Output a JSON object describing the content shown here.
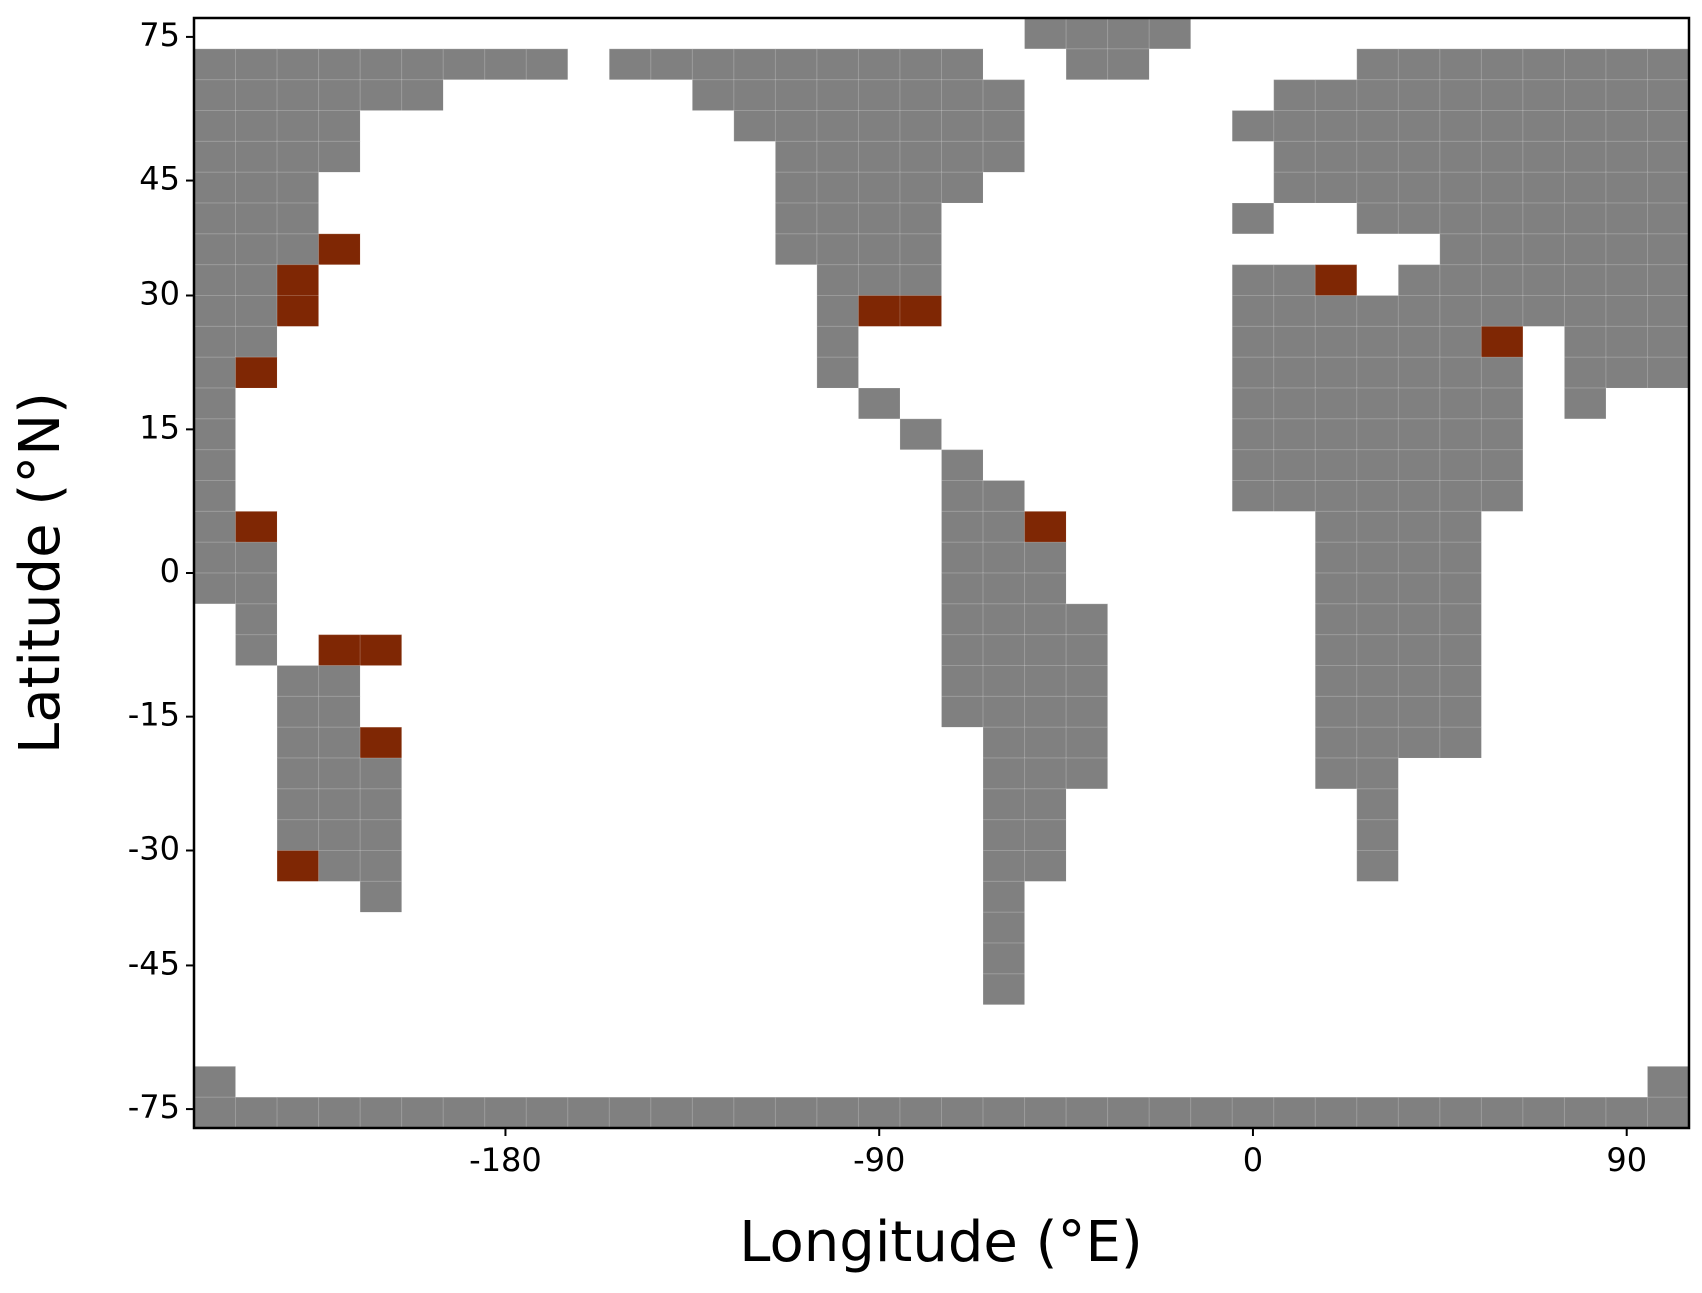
{
  "chart_data": {
    "type": "grid-map",
    "xlabel": "Longitude (°E)",
    "ylabel": "Latitude (°N)",
    "xlim": [
      -255,
      105
    ],
    "xticks": [
      -180,
      -90,
      0,
      90
    ],
    "ylim": [
      -90,
      90
    ],
    "yticks": [
      75,
      45,
      30,
      15,
      0,
      -15,
      -30,
      -45,
      -75
    ],
    "yscale": "sine",
    "colors": [
      "#ffffff",
      "#808080",
      "#7f2704"
    ],
    "values": [
      [
        0,
        0,
        0,
        0,
        0,
        0,
        0,
        0,
        0,
        0,
        0,
        0,
        0,
        0,
        0,
        0,
        0,
        0,
        0,
        0,
        1,
        1,
        1,
        1,
        0,
        0,
        0,
        0,
        0,
        0,
        0,
        0,
        0,
        0,
        0,
        0
      ],
      [
        1,
        1,
        1,
        1,
        1,
        1,
        1,
        1,
        1,
        0,
        1,
        1,
        1,
        1,
        1,
        1,
        1,
        1,
        1,
        0,
        0,
        1,
        1,
        0,
        0,
        0,
        0,
        0,
        1,
        1,
        1,
        1,
        1,
        1,
        1,
        1
      ],
      [
        1,
        1,
        1,
        1,
        1,
        1,
        0,
        0,
        0,
        0,
        0,
        0,
        1,
        1,
        1,
        1,
        1,
        1,
        1,
        1,
        0,
        0,
        0,
        0,
        0,
        0,
        1,
        1,
        1,
        1,
        1,
        1,
        1,
        1,
        1,
        1
      ],
      [
        1,
        1,
        1,
        1,
        0,
        0,
        0,
        0,
        0,
        0,
        0,
        0,
        0,
        1,
        1,
        1,
        1,
        1,
        1,
        1,
        0,
        0,
        0,
        0,
        0,
        1,
        1,
        1,
        1,
        1,
        1,
        1,
        1,
        1,
        1,
        1
      ],
      [
        1,
        1,
        1,
        1,
        0,
        0,
        0,
        0,
        0,
        0,
        0,
        0,
        0,
        0,
        1,
        1,
        1,
        1,
        1,
        1,
        0,
        0,
        0,
        0,
        0,
        0,
        1,
        1,
        1,
        1,
        1,
        1,
        1,
        1,
        1,
        1
      ],
      [
        1,
        1,
        1,
        0,
        0,
        0,
        0,
        0,
        0,
        0,
        0,
        0,
        0,
        0,
        1,
        1,
        1,
        1,
        1,
        0,
        0,
        0,
        0,
        0,
        0,
        0,
        1,
        1,
        1,
        1,
        1,
        1,
        1,
        1,
        1,
        1
      ],
      [
        1,
        1,
        1,
        0,
        0,
        0,
        0,
        0,
        0,
        0,
        0,
        0,
        0,
        0,
        1,
        1,
        1,
        1,
        0,
        0,
        0,
        0,
        0,
        0,
        0,
        1,
        0,
        0,
        1,
        1,
        1,
        1,
        1,
        1,
        1,
        1
      ],
      [
        1,
        1,
        1,
        2,
        0,
        0,
        0,
        0,
        0,
        0,
        0,
        0,
        0,
        0,
        1,
        1,
        1,
        1,
        0,
        0,
        0,
        0,
        0,
        0,
        0,
        0,
        0,
        0,
        0,
        0,
        1,
        1,
        1,
        1,
        1,
        1
      ],
      [
        1,
        1,
        2,
        0,
        0,
        0,
        0,
        0,
        0,
        0,
        0,
        0,
        0,
        0,
        0,
        1,
        1,
        1,
        0,
        0,
        0,
        0,
        0,
        0,
        0,
        1,
        1,
        2,
        0,
        1,
        1,
        1,
        1,
        1,
        1,
        1
      ],
      [
        1,
        1,
        2,
        0,
        0,
        0,
        0,
        0,
        0,
        0,
        0,
        0,
        0,
        0,
        0,
        1,
        2,
        2,
        0,
        0,
        0,
        0,
        0,
        0,
        0,
        1,
        1,
        1,
        1,
        1,
        1,
        1,
        1,
        1,
        1,
        1
      ],
      [
        1,
        1,
        0,
        0,
        0,
        0,
        0,
        0,
        0,
        0,
        0,
        0,
        0,
        0,
        0,
        1,
        0,
        0,
        0,
        0,
        0,
        0,
        0,
        0,
        0,
        1,
        1,
        1,
        1,
        1,
        1,
        2,
        0,
        1,
        1,
        1
      ],
      [
        1,
        2,
        0,
        0,
        0,
        0,
        0,
        0,
        0,
        0,
        0,
        0,
        0,
        0,
        0,
        1,
        0,
        0,
        0,
        0,
        0,
        0,
        0,
        0,
        0,
        1,
        1,
        1,
        1,
        1,
        1,
        1,
        0,
        1,
        1,
        1
      ],
      [
        1,
        0,
        0,
        0,
        0,
        0,
        0,
        0,
        0,
        0,
        0,
        0,
        0,
        0,
        0,
        0,
        1,
        0,
        0,
        0,
        0,
        0,
        0,
        0,
        0,
        1,
        1,
        1,
        1,
        1,
        1,
        1,
        0,
        1,
        0,
        0
      ],
      [
        1,
        0,
        0,
        0,
        0,
        0,
        0,
        0,
        0,
        0,
        0,
        0,
        0,
        0,
        0,
        0,
        0,
        1,
        0,
        0,
        0,
        0,
        0,
        0,
        0,
        1,
        1,
        1,
        1,
        1,
        1,
        1,
        0,
        0,
        0,
        0
      ],
      [
        1,
        0,
        0,
        0,
        0,
        0,
        0,
        0,
        0,
        0,
        0,
        0,
        0,
        0,
        0,
        0,
        0,
        0,
        1,
        0,
        0,
        0,
        0,
        0,
        0,
        1,
        1,
        1,
        1,
        1,
        1,
        1,
        0,
        0,
        0,
        0
      ],
      [
        1,
        0,
        0,
        0,
        0,
        0,
        0,
        0,
        0,
        0,
        0,
        0,
        0,
        0,
        0,
        0,
        0,
        0,
        1,
        1,
        0,
        0,
        0,
        0,
        0,
        1,
        1,
        1,
        1,
        1,
        1,
        1,
        0,
        0,
        0,
        0
      ],
      [
        1,
        2,
        0,
        0,
        0,
        0,
        0,
        0,
        0,
        0,
        0,
        0,
        0,
        0,
        0,
        0,
        0,
        0,
        1,
        1,
        2,
        0,
        0,
        0,
        0,
        0,
        0,
        1,
        1,
        1,
        1,
        0,
        0,
        0,
        0,
        0
      ],
      [
        1,
        1,
        0,
        0,
        0,
        0,
        0,
        0,
        0,
        0,
        0,
        0,
        0,
        0,
        0,
        0,
        0,
        0,
        1,
        1,
        1,
        0,
        0,
        0,
        0,
        0,
        0,
        1,
        1,
        1,
        1,
        0,
        0,
        0,
        0,
        0
      ],
      [
        1,
        1,
        0,
        0,
        0,
        0,
        0,
        0,
        0,
        0,
        0,
        0,
        0,
        0,
        0,
        0,
        0,
        0,
        1,
        1,
        1,
        0,
        0,
        0,
        0,
        0,
        0,
        1,
        1,
        1,
        1,
        0,
        0,
        0,
        0,
        0
      ],
      [
        0,
        1,
        0,
        0,
        0,
        0,
        0,
        0,
        0,
        0,
        0,
        0,
        0,
        0,
        0,
        0,
        0,
        0,
        1,
        1,
        1,
        1,
        0,
        0,
        0,
        0,
        0,
        1,
        1,
        1,
        1,
        0,
        0,
        0,
        0,
        0
      ],
      [
        0,
        1,
        0,
        2,
        2,
        0,
        0,
        0,
        0,
        0,
        0,
        0,
        0,
        0,
        0,
        0,
        0,
        0,
        1,
        1,
        1,
        1,
        0,
        0,
        0,
        0,
        0,
        1,
        1,
        1,
        1,
        0,
        0,
        0,
        0,
        0
      ],
      [
        0,
        0,
        1,
        1,
        0,
        0,
        0,
        0,
        0,
        0,
        0,
        0,
        0,
        0,
        0,
        0,
        0,
        0,
        1,
        1,
        1,
        1,
        0,
        0,
        0,
        0,
        0,
        1,
        1,
        1,
        1,
        0,
        0,
        0,
        0,
        0
      ],
      [
        0,
        0,
        1,
        1,
        0,
        0,
        0,
        0,
        0,
        0,
        0,
        0,
        0,
        0,
        0,
        0,
        0,
        0,
        1,
        1,
        1,
        1,
        0,
        0,
        0,
        0,
        0,
        1,
        1,
        1,
        1,
        0,
        0,
        0,
        0,
        0
      ],
      [
        0,
        0,
        1,
        1,
        2,
        0,
        0,
        0,
        0,
        0,
        0,
        0,
        0,
        0,
        0,
        0,
        0,
        0,
        0,
        1,
        1,
        1,
        0,
        0,
        0,
        0,
        0,
        1,
        1,
        1,
        1,
        0,
        0,
        0,
        0,
        0
      ],
      [
        0,
        0,
        1,
        1,
        1,
        0,
        0,
        0,
        0,
        0,
        0,
        0,
        0,
        0,
        0,
        0,
        0,
        0,
        0,
        1,
        1,
        1,
        0,
        0,
        0,
        0,
        0,
        1,
        1,
        0,
        0,
        0,
        0,
        0,
        0,
        0
      ],
      [
        0,
        0,
        1,
        1,
        1,
        0,
        0,
        0,
        0,
        0,
        0,
        0,
        0,
        0,
        0,
        0,
        0,
        0,
        0,
        1,
        1,
        0,
        0,
        0,
        0,
        0,
        0,
        0,
        1,
        0,
        0,
        0,
        0,
        0,
        0,
        0
      ],
      [
        0,
        0,
        1,
        1,
        1,
        0,
        0,
        0,
        0,
        0,
        0,
        0,
        0,
        0,
        0,
        0,
        0,
        0,
        0,
        1,
        1,
        0,
        0,
        0,
        0,
        0,
        0,
        0,
        1,
        0,
        0,
        0,
        0,
        0,
        0,
        0
      ],
      [
        0,
        0,
        2,
        1,
        1,
        0,
        0,
        0,
        0,
        0,
        0,
        0,
        0,
        0,
        0,
        0,
        0,
        0,
        0,
        1,
        1,
        0,
        0,
        0,
        0,
        0,
        0,
        0,
        1,
        0,
        0,
        0,
        0,
        0,
        0,
        0
      ],
      [
        0,
        0,
        0,
        0,
        1,
        0,
        0,
        0,
        0,
        0,
        0,
        0,
        0,
        0,
        0,
        0,
        0,
        0,
        0,
        1,
        0,
        0,
        0,
        0,
        0,
        0,
        0,
        0,
        0,
        0,
        0,
        0,
        0,
        0,
        0,
        0
      ],
      [
        0,
        0,
        0,
        0,
        0,
        0,
        0,
        0,
        0,
        0,
        0,
        0,
        0,
        0,
        0,
        0,
        0,
        0,
        0,
        1,
        0,
        0,
        0,
        0,
        0,
        0,
        0,
        0,
        0,
        0,
        0,
        0,
        0,
        0,
        0,
        0
      ],
      [
        0,
        0,
        0,
        0,
        0,
        0,
        0,
        0,
        0,
        0,
        0,
        0,
        0,
        0,
        0,
        0,
        0,
        0,
        0,
        1,
        0,
        0,
        0,
        0,
        0,
        0,
        0,
        0,
        0,
        0,
        0,
        0,
        0,
        0,
        0,
        0
      ],
      [
        0,
        0,
        0,
        0,
        0,
        0,
        0,
        0,
        0,
        0,
        0,
        0,
        0,
        0,
        0,
        0,
        0,
        0,
        0,
        1,
        0,
        0,
        0,
        0,
        0,
        0,
        0,
        0,
        0,
        0,
        0,
        0,
        0,
        0,
        0,
        0
      ],
      [
        0,
        0,
        0,
        0,
        0,
        0,
        0,
        0,
        0,
        0,
        0,
        0,
        0,
        0,
        0,
        0,
        0,
        0,
        0,
        0,
        0,
        0,
        0,
        0,
        0,
        0,
        0,
        0,
        0,
        0,
        0,
        0,
        0,
        0,
        0,
        0
      ],
      [
        0,
        0,
        0,
        0,
        0,
        0,
        0,
        0,
        0,
        0,
        0,
        0,
        0,
        0,
        0,
        0,
        0,
        0,
        0,
        0,
        0,
        0,
        0,
        0,
        0,
        0,
        0,
        0,
        0,
        0,
        0,
        0,
        0,
        0,
        0,
        0
      ],
      [
        1,
        0,
        0,
        0,
        0,
        0,
        0,
        0,
        0,
        0,
        0,
        0,
        0,
        0,
        0,
        0,
        0,
        0,
        0,
        0,
        0,
        0,
        0,
        0,
        0,
        0,
        0,
        0,
        0,
        0,
        0,
        0,
        0,
        0,
        0,
        1
      ],
      [
        1,
        1,
        1,
        1,
        1,
        1,
        1,
        1,
        1,
        1,
        1,
        1,
        1,
        1,
        1,
        1,
        1,
        1,
        1,
        1,
        1,
        1,
        1,
        1,
        1,
        1,
        1,
        1,
        1,
        1,
        1,
        1,
        1,
        1,
        1,
        1
      ]
    ]
  }
}
